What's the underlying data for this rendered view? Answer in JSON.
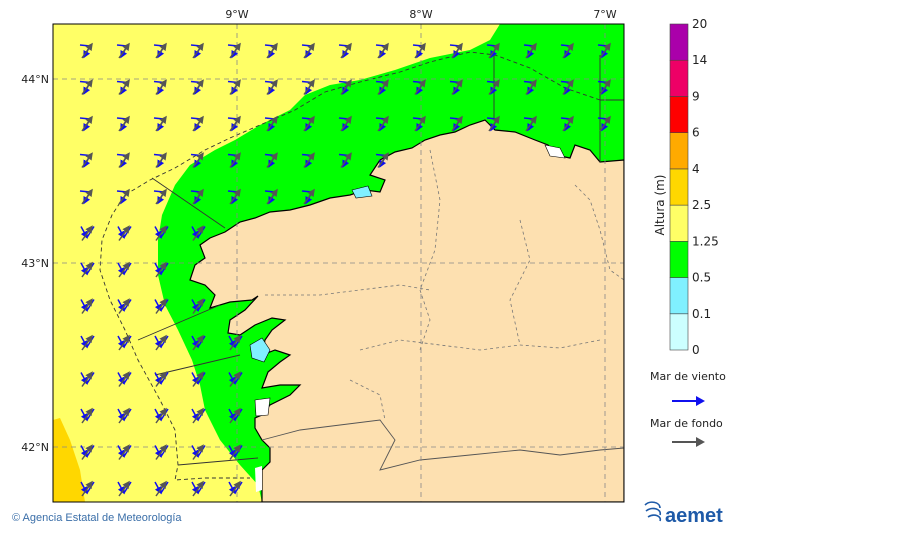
{
  "map": {
    "lon_labels": [
      "9°W",
      "8°W",
      "7°W"
    ],
    "lat_labels": [
      "44°N",
      "43°N",
      "42°N"
    ]
  },
  "legend": {
    "title": "Altura (m)",
    "bins": [
      {
        "label": "0",
        "color": "#ccffff"
      },
      {
        "label": "0.1",
        "color": "#80f0ff"
      },
      {
        "label": "0.5",
        "color": "#00ff00"
      },
      {
        "label": "1.25",
        "color": "#ffff66"
      },
      {
        "label": "2.5",
        "color": "#ffd700"
      },
      {
        "label": "4",
        "color": "#ffaa00"
      },
      {
        "label": "6",
        "color": "#ff0000"
      },
      {
        "label": "9",
        "color": "#ee0066"
      },
      {
        "label": "14",
        "color": "#aa00aa"
      },
      {
        "label": "20",
        "color": ""
      }
    ],
    "wind_sea_label": "Mar de viento",
    "wind_sea_color": "#1010ee",
    "swell_label": "Mar de fondo",
    "swell_color": "#555555"
  },
  "footer": {
    "copyright": "© Agencia Estatal de Meteorología",
    "logo_text": "aemet"
  },
  "colors": {
    "land": "#fde0b0",
    "sea_high": "#ffff66",
    "sea_mid": "#00ff00",
    "sea_low": "#80f0ff",
    "sea_top": "#ffd700"
  }
}
